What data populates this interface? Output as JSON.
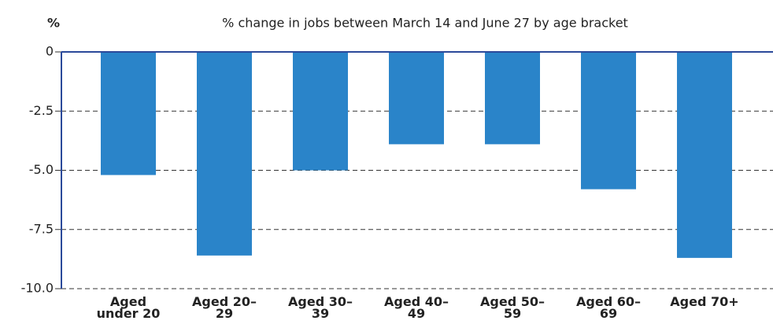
{
  "chart_data": {
    "type": "bar",
    "title": "% change in jobs between March 14 and June 27 by age bracket",
    "y_label": "%",
    "categories": [
      "Aged under 20",
      "Aged 20–29",
      "Aged 30–39",
      "Aged 40–49",
      "Aged 50–59",
      "Aged 60–69",
      "Aged 70+"
    ],
    "values": [
      -5.2,
      -8.6,
      -5.0,
      -3.9,
      -3.9,
      -5.8,
      -8.7
    ],
    "color": "#2a84c9",
    "ylim": [
      -10,
      0
    ],
    "yticks": [
      0,
      -2.5,
      {
        "value": -5,
        "label": "-5.0"
      },
      -7.5,
      {
        "value": -10,
        "label": "-10.0"
      }
    ],
    "grid": true
  }
}
